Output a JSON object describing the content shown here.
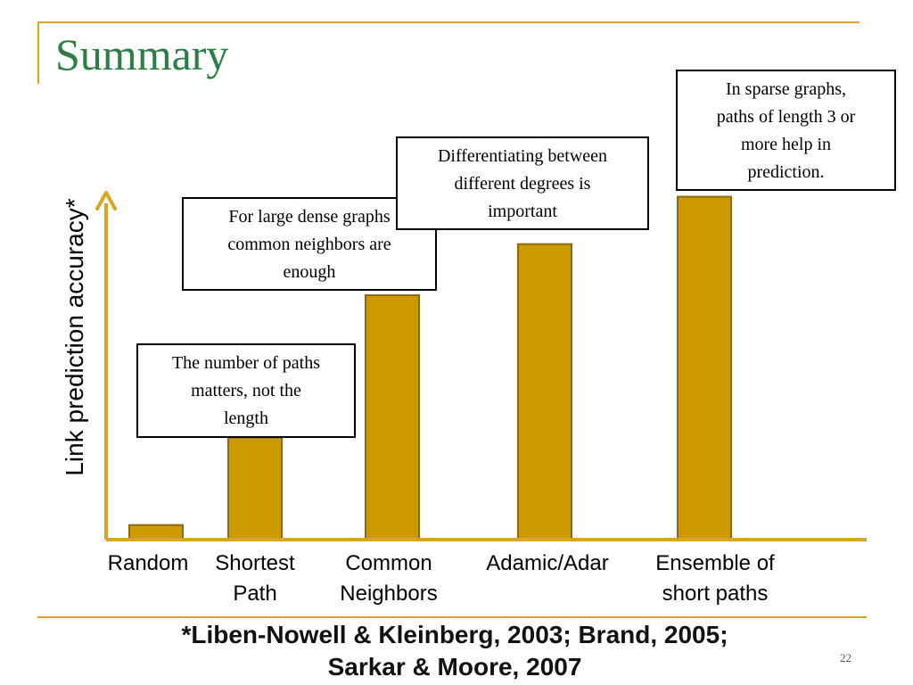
{
  "slide": {
    "title": "Summary",
    "footnote_line1": "*Liben-Nowell & Kleinberg, 2003; Brand, 2005;",
    "footnote_line2": "Sarkar & Moore, 2007",
    "slide_number": "22"
  },
  "colors": {
    "bar_fill": "#cc9900",
    "bar_stroke": "#8a6a12",
    "axis": "#d9a621",
    "title": "#2e7d45"
  },
  "chart_data": {
    "type": "bar",
    "title": "",
    "xlabel": "",
    "ylabel": "Link prediction accuracy*",
    "categories": [
      [
        "Random"
      ],
      [
        "Shortest",
        "Path"
      ],
      [
        "Common",
        "Neighbors"
      ],
      [
        "Adamic/Adar"
      ],
      [
        "Ensemble of",
        "short paths"
      ]
    ],
    "values": [
      4,
      28,
      67,
      81,
      94
    ],
    "ylim": [
      0,
      100
    ],
    "grid": false,
    "legend": "none",
    "annotations": [
      {
        "lines": [
          "The number of paths",
          "matters, not the",
          "length"
        ],
        "category_index": 1
      },
      {
        "lines": [
          "For large dense graphs",
          "common neighbors are",
          "enough"
        ],
        "category_index": 2
      },
      {
        "lines": [
          "Differentiating between",
          "different degrees is",
          "important"
        ],
        "category_index": 3
      },
      {
        "lines": [
          "In sparse graphs,",
          "paths of length 3 or",
          "more help in",
          "prediction."
        ],
        "category_index": 4
      }
    ]
  }
}
